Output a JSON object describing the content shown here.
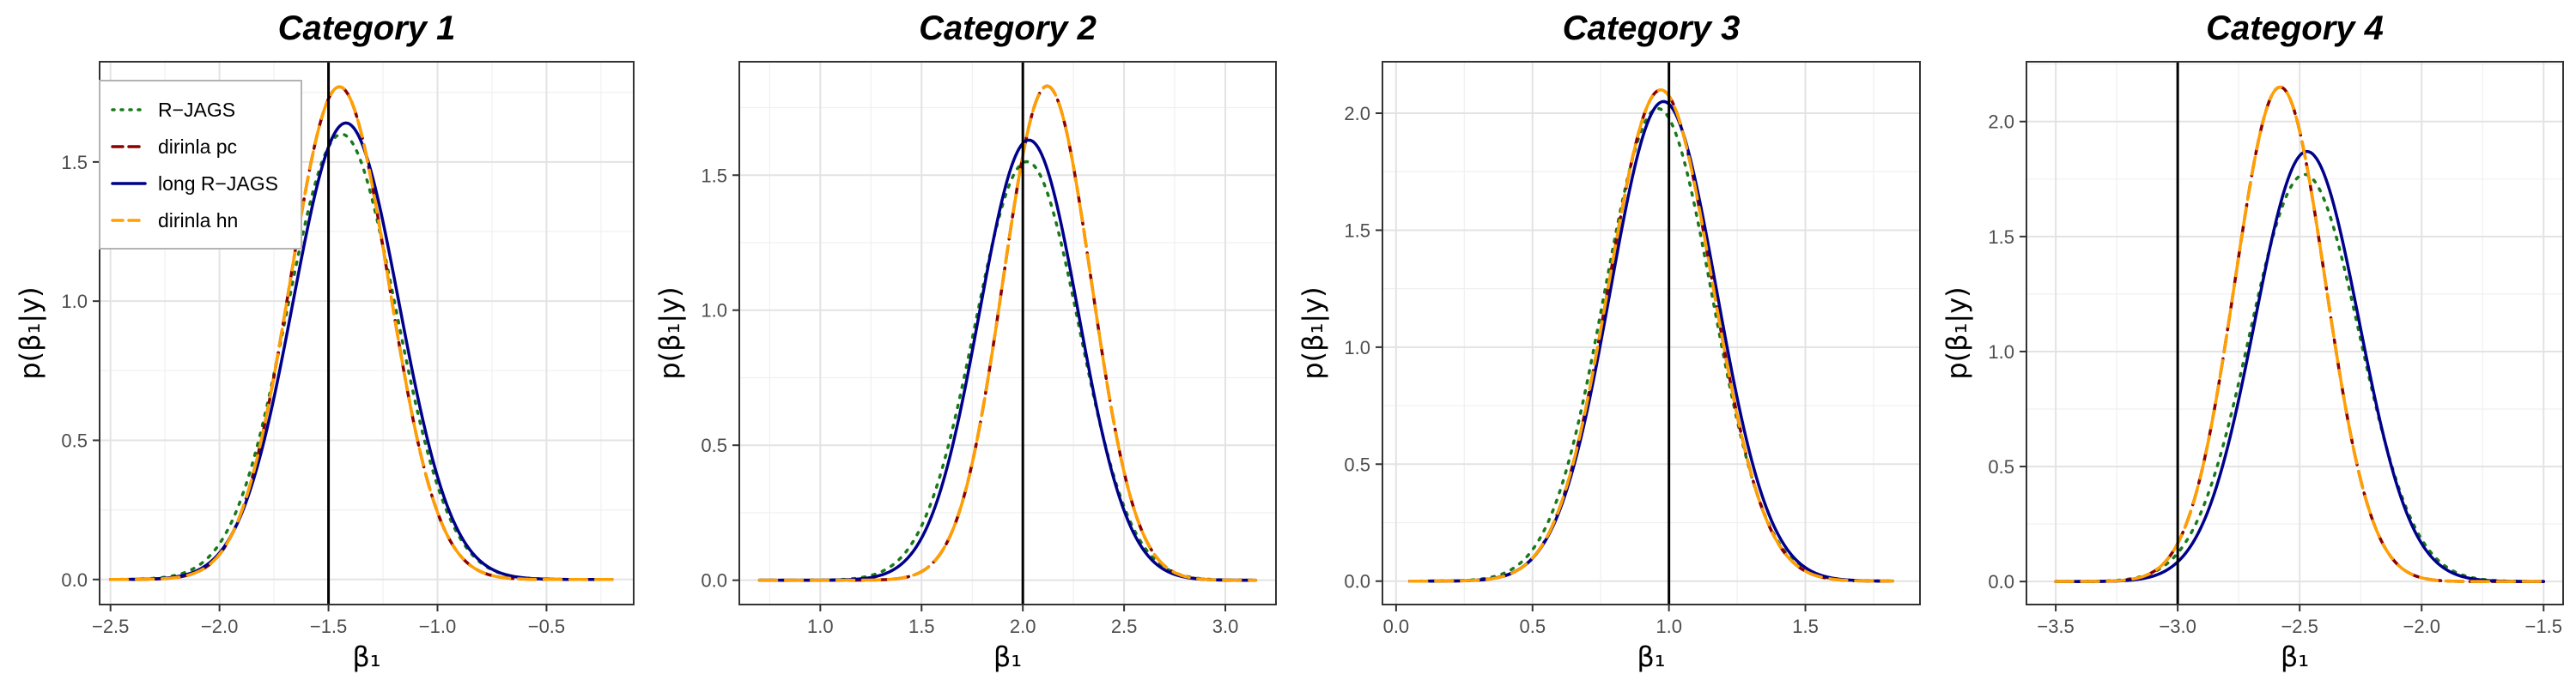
{
  "colors": {
    "r_jags": "#1a7a1a",
    "dirinla_pc": "#8b0000",
    "long_r_jags": "#00008b",
    "dirinla_hn": "#ffa000",
    "true_line": "#000000"
  },
  "legend": {
    "placement": "top-left of panel 1",
    "items": [
      {
        "label": "R−JAGS",
        "series": "r_jags",
        "dash": "dotted"
      },
      {
        "label": "dirinla pc",
        "series": "dirinla_pc",
        "dash": "dashed"
      },
      {
        "label": "long R−JAGS",
        "series": "long_r_jags",
        "dash": "solid"
      },
      {
        "label": "dirinla hn",
        "series": "dirinla_hn",
        "dash": "dashed"
      }
    ]
  },
  "chart_data": [
    {
      "type": "line",
      "title": "Category 1",
      "xlabel": "β₁",
      "ylabel": "p(β₁|y)",
      "xlim": [
        -2.55,
        -0.1
      ],
      "ylim": [
        -0.09,
        1.86
      ],
      "xticks": [
        -2.5,
        -2.0,
        -1.5,
        -1.0,
        -0.5
      ],
      "xtick_labels": [
        "−2.5",
        "−2.0",
        "−1.5",
        "−1.0",
        "−0.5"
      ],
      "yticks": [
        0.0,
        0.5,
        1.0,
        1.5
      ],
      "ytick_labels": [
        "0.0",
        "0.5",
        "1.0",
        "1.5"
      ],
      "grid": true,
      "true_value": -1.5,
      "x_range": [
        -2.5,
        -0.2
      ],
      "series": [
        {
          "name": "R−JAGS",
          "key": "r_jags",
          "mean": -1.44,
          "peak": 1.6
        },
        {
          "name": "dirinla pc",
          "key": "dirinla_pc",
          "mean": -1.45,
          "peak": 1.77
        },
        {
          "name": "long R−JAGS",
          "key": "long_r_jags",
          "mean": -1.42,
          "peak": 1.64
        },
        {
          "name": "dirinla hn",
          "key": "dirinla_hn",
          "mean": -1.45,
          "peak": 1.77
        }
      ]
    },
    {
      "type": "line",
      "title": "Category 2",
      "xlabel": "β₁",
      "ylabel": "p(β₁|y)",
      "xlim": [
        0.6,
        3.25
      ],
      "ylim": [
        -0.09,
        1.92
      ],
      "xticks": [
        1.0,
        1.5,
        2.0,
        2.5,
        3.0
      ],
      "xtick_labels": [
        "1.0",
        "1.5",
        "2.0",
        "2.5",
        "3.0"
      ],
      "yticks": [
        0.0,
        0.5,
        1.0,
        1.5
      ],
      "ytick_labels": [
        "0.0",
        "0.5",
        "1.0",
        "1.5"
      ],
      "grid": true,
      "true_value": 2.0,
      "x_range": [
        0.7,
        3.15
      ],
      "series": [
        {
          "name": "R−JAGS",
          "key": "r_jags",
          "mean": 2.02,
          "peak": 1.55
        },
        {
          "name": "dirinla pc",
          "key": "dirinla_pc",
          "mean": 2.12,
          "peak": 1.83
        },
        {
          "name": "long R−JAGS",
          "key": "long_r_jags",
          "mean": 2.03,
          "peak": 1.63
        },
        {
          "name": "dirinla hn",
          "key": "dirinla_hn",
          "mean": 2.12,
          "peak": 1.83
        }
      ]
    },
    {
      "type": "line",
      "title": "Category 3",
      "xlabel": "β₁",
      "ylabel": "p(β₁|y)",
      "xlim": [
        -0.05,
        1.92
      ],
      "ylim": [
        -0.1,
        2.22
      ],
      "xticks": [
        0.0,
        0.5,
        1.0,
        1.5
      ],
      "xtick_labels": [
        "0.0",
        "0.5",
        "1.0",
        "1.5"
      ],
      "yticks": [
        0.0,
        0.5,
        1.0,
        1.5,
        2.0
      ],
      "ytick_labels": [
        "0.0",
        "0.5",
        "1.0",
        "1.5",
        "2.0"
      ],
      "grid": true,
      "true_value": 1.0,
      "x_range": [
        0.05,
        1.82
      ],
      "series": [
        {
          "name": "R−JAGS",
          "key": "r_jags",
          "mean": 0.96,
          "peak": 2.02
        },
        {
          "name": "dirinla pc",
          "key": "dirinla_pc",
          "mean": 0.97,
          "peak": 2.1
        },
        {
          "name": "long R−JAGS",
          "key": "long_r_jags",
          "mean": 0.98,
          "peak": 2.05
        },
        {
          "name": "dirinla hn",
          "key": "dirinla_hn",
          "mean": 0.97,
          "peak": 2.1
        }
      ]
    },
    {
      "type": "line",
      "title": "Category 4",
      "xlabel": "β₁",
      "ylabel": "p(β₁|y)",
      "xlim": [
        -3.62,
        -1.42
      ],
      "ylim": [
        -0.1,
        2.26
      ],
      "xticks": [
        -3.5,
        -3.0,
        -2.5,
        -2.0,
        -1.5
      ],
      "xtick_labels": [
        "−3.5",
        "−3.0",
        "−2.5",
        "−2.0",
        "−1.5"
      ],
      "yticks": [
        0.0,
        0.5,
        1.0,
        1.5,
        2.0
      ],
      "ytick_labels": [
        "0.0",
        "0.5",
        "1.0",
        "1.5",
        "2.0"
      ],
      "grid": true,
      "true_value": -3.0,
      "x_range": [
        -3.5,
        -1.5
      ],
      "series": [
        {
          "name": "R−JAGS",
          "key": "r_jags",
          "mean": -2.48,
          "peak": 1.77
        },
        {
          "name": "dirinla pc",
          "key": "dirinla_pc",
          "mean": -2.58,
          "peak": 2.15
        },
        {
          "name": "long R−JAGS",
          "key": "long_r_jags",
          "mean": -2.47,
          "peak": 1.87
        },
        {
          "name": "dirinla hn",
          "key": "dirinla_hn",
          "mean": -2.58,
          "peak": 2.15
        }
      ]
    }
  ]
}
